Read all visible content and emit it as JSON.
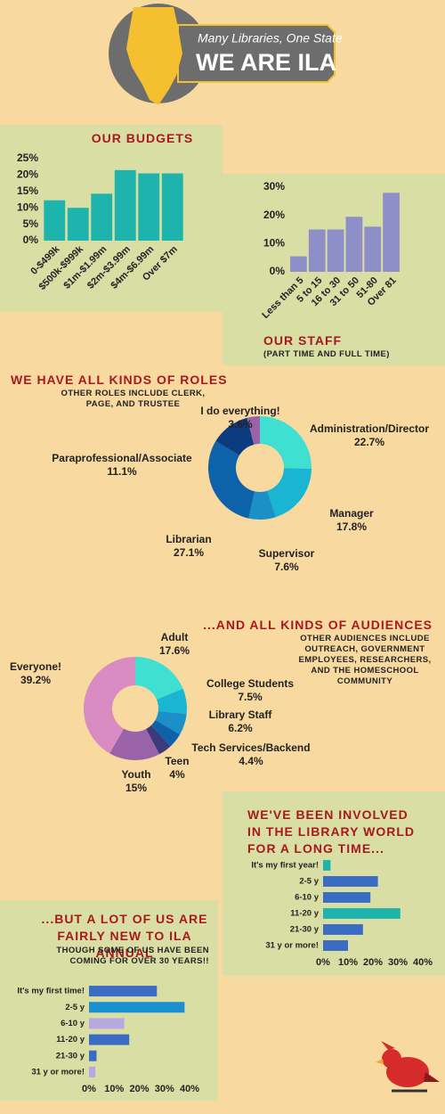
{
  "header": {
    "tagline": "Many Libraries, One State",
    "title": "WE ARE ILA"
  },
  "chart_data": [
    {
      "type": "bar",
      "title": "OUR BUDGETS",
      "categories": [
        "0-$499k",
        "$500k-$999k",
        "$1m-$1.99m",
        "$2m-$3.99m",
        "$4m-$6.99m",
        "Over $7m"
      ],
      "values": [
        12.3,
        10,
        14.3,
        21.5,
        20.5,
        20.5
      ],
      "color": "#1fb3ad",
      "ylim": [
        0,
        25
      ],
      "yticks": [
        {
          "value": 0,
          "label": "0%"
        },
        {
          "value": 5,
          "label": "5%"
        },
        {
          "value": 10,
          "label": "10%"
        },
        {
          "value": 15,
          "label": "15%"
        },
        {
          "value": 20,
          "label": "20%"
        },
        {
          "value": 25,
          "label": "25%"
        }
      ]
    },
    {
      "type": "bar",
      "title": "OUR STAFF",
      "subtitle": "(PART TIME AND FULL TIME)",
      "categories": [
        "Less than 5",
        "5 to 15",
        "16 to 30",
        "31 to 50",
        "51-80",
        "Over 81"
      ],
      "values": [
        5.5,
        15,
        15,
        19.5,
        16,
        28
      ],
      "color": "#8e8fc9",
      "ylim": [
        0,
        30
      ],
      "yticks": [
        {
          "value": 0,
          "label": "0%"
        },
        {
          "value": 10,
          "label": "10%"
        },
        {
          "value": 20,
          "label": "20%"
        },
        {
          "value": 30,
          "label": "30%"
        }
      ]
    },
    {
      "type": "donut",
      "title": "WE HAVE ALL KINDS OF ROLES",
      "subtitle": "OTHER ROLES INCLUDE CLERK, PAGE, AND TRUSTEE",
      "categories": [
        "Administration/Director",
        "Manager",
        "Supervisor",
        "Librarian",
        "Paraprofessional/Associate",
        "I do everything!"
      ],
      "values": [
        22.7,
        17.8,
        7.6,
        27.1,
        11.1,
        3.6
      ],
      "value_labels": [
        "22.7%",
        "17.8%",
        "7.6%",
        "27.1%",
        "11.1%",
        "3.6%"
      ],
      "colors": [
        "#3fe0d2",
        "#19b5d3",
        "#1a8fc8",
        "#0e62aa",
        "#0b3c80",
        "#9a62a8"
      ]
    },
    {
      "type": "donut",
      "title": "...AND ALL KINDS OF AUDIENCES",
      "subtitle": "OTHER AUDIENCES INCLUDE OUTREACH, GOVERNMENT EMPLOYEES, RESEARCHERS, AND THE HOMESCHOOL COMMUNITY",
      "categories": [
        "Adult",
        "College Students",
        "Library Staff",
        "Tech Services/Backend",
        "Teen",
        "Youth",
        "Everyone!"
      ],
      "values": [
        17.6,
        7.5,
        6.2,
        4.4,
        4,
        15,
        39.2
      ],
      "value_labels": [
        "17.6%",
        "7.5%",
        "6.2%",
        "4.4%",
        "4%",
        "15%",
        "39.2%"
      ],
      "colors": [
        "#3fe0d2",
        "#19b5d3",
        "#1a8fc8",
        "#0e62aa",
        "#3a3a7c",
        "#9a62a8",
        "#d98cc2"
      ]
    },
    {
      "type": "bar",
      "orientation": "horizontal",
      "title": "WE'VE BEEN INVOLVED IN THE LIBRARY WORLD FOR A LONG TIME...",
      "categories": [
        "It's my first year!",
        "2-5 y",
        "6-10 y",
        "11-20 y",
        "21-30 y",
        "31 y or more!"
      ],
      "values": [
        3,
        22,
        19,
        31,
        16,
        10
      ],
      "colors": [
        "#1fb3ad",
        "#3a6cc4",
        "#3a6cc4",
        "#1fb3ad",
        "#3a6cc4",
        "#3a6cc4"
      ],
      "xlim": [
        0,
        40
      ],
      "xticks": [
        {
          "value": 0,
          "label": "0%"
        },
        {
          "value": 10,
          "label": "10%"
        },
        {
          "value": 20,
          "label": "20%"
        },
        {
          "value": 30,
          "label": "30%"
        },
        {
          "value": 40,
          "label": "40%"
        }
      ]
    },
    {
      "type": "bar",
      "orientation": "horizontal",
      "title": "...BUT A LOT OF US ARE FAIRLY NEW TO ILA ANNUAL",
      "subtitle": "THOUGH SOME OF US HAVE BEEN COMING FOR OVER 30 YEARS!!",
      "categories": [
        "It's my first time!",
        "2-5 y",
        "6-10 y",
        "11-20 y",
        "21-30 y",
        "31 y or more!"
      ],
      "values": [
        27,
        38,
        14,
        16,
        3,
        2.5
      ],
      "colors": [
        "#3a6cc4",
        "#1a90d0",
        "#b8a8e2",
        "#3a6cc4",
        "#3a6cc4",
        "#b8a8e2"
      ],
      "xlim": [
        0,
        40
      ],
      "xticks": [
        {
          "value": 0,
          "label": "0%"
        },
        {
          "value": 10,
          "label": "10%"
        },
        {
          "value": 20,
          "label": "20%"
        },
        {
          "value": 30,
          "label": "30%"
        },
        {
          "value": 40,
          "label": "40%"
        }
      ]
    }
  ]
}
